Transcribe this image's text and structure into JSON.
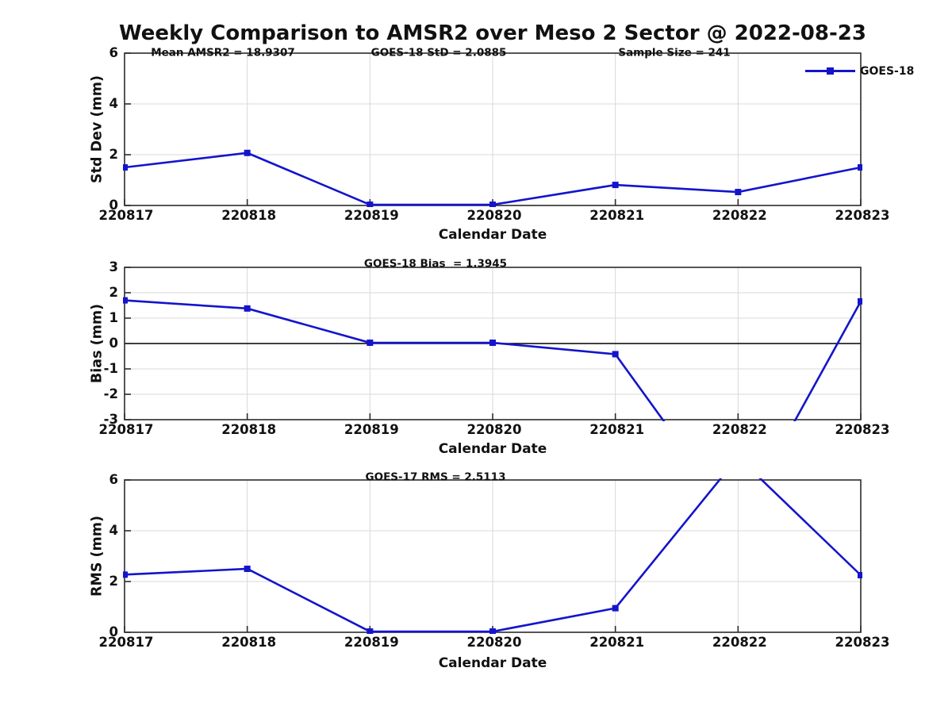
{
  "title": "Weekly Comparison to AMSR2 over Meso 2 Sector @ 2022-08-23",
  "legend": {
    "label": "GOES-18"
  },
  "colors": {
    "line": "#1414cc",
    "grid": "#d8d8d8",
    "axis": "#2b2b2b",
    "zero_line": "#000000",
    "text": "#111111",
    "background": "#ffffff"
  },
  "chart_data": [
    {
      "type": "line",
      "name": "std-dev-panel",
      "annotations": [
        "Mean AMSR2 = 18.9307",
        "GOES-18 StD = 2.0885",
        "Sample Size = 241"
      ],
      "categories": [
        "220817",
        "220818",
        "220819",
        "220820",
        "220821",
        "220822",
        "220823"
      ],
      "series": [
        {
          "name": "GOES-18",
          "values": [
            1.5,
            2.07,
            0.03,
            0.03,
            0.81,
            0.53,
            1.5
          ]
        }
      ],
      "xlabel": "Calendar Date",
      "ylabel": "Std Dev (mm)",
      "ylim": [
        0,
        6
      ],
      "yticks": [
        0,
        2,
        4,
        6
      ],
      "ytick_labels": [
        "0",
        "2",
        "4",
        "6"
      ],
      "zero_line": false,
      "grid": true,
      "legend_position": "top-right",
      "marker": "square"
    },
    {
      "type": "line",
      "name": "bias-panel",
      "annotations": [
        "GOES-18 Bias  = 1.3945"
      ],
      "categories": [
        "220817",
        "220818",
        "220819",
        "220820",
        "220821",
        "220822",
        "220823"
      ],
      "series": [
        {
          "name": "GOES-18",
          "values": [
            1.7,
            1.38,
            0.03,
            0.03,
            -0.42,
            -7.1,
            1.66
          ]
        }
      ],
      "off_scale_note": "value at 220822 is below axis range (clipped)",
      "xlabel": "Calendar Date",
      "ylabel": "Bias (mm)",
      "ylim": [
        -3,
        3
      ],
      "yticks": [
        3,
        2,
        1,
        0,
        -1,
        -2,
        -3
      ],
      "ytick_labels": [
        "3",
        "2",
        "1",
        "0",
        "-1",
        "-2",
        "-3"
      ],
      "zero_line": true,
      "grid": true,
      "legend_position": "none",
      "marker": "square"
    },
    {
      "type": "line",
      "name": "rms-panel",
      "annotations": [
        "GOES-17 RMS = 2.5113"
      ],
      "categories": [
        "220817",
        "220818",
        "220819",
        "220820",
        "220821",
        "220822",
        "220823"
      ],
      "series": [
        {
          "name": "GOES-18",
          "values": [
            2.27,
            2.5,
            0.03,
            0.03,
            0.95,
            6.9,
            2.25
          ]
        }
      ],
      "off_scale_note": "value at 220822 is above axis range (clipped)",
      "xlabel": "Calendar Date",
      "ylabel": "RMS (mm)",
      "ylim": [
        0,
        6
      ],
      "yticks": [
        0,
        2,
        4,
        6
      ],
      "ytick_labels": [
        "0",
        "2",
        "4",
        "6"
      ],
      "zero_line": false,
      "grid": true,
      "legend_position": "none",
      "marker": "square"
    }
  ]
}
